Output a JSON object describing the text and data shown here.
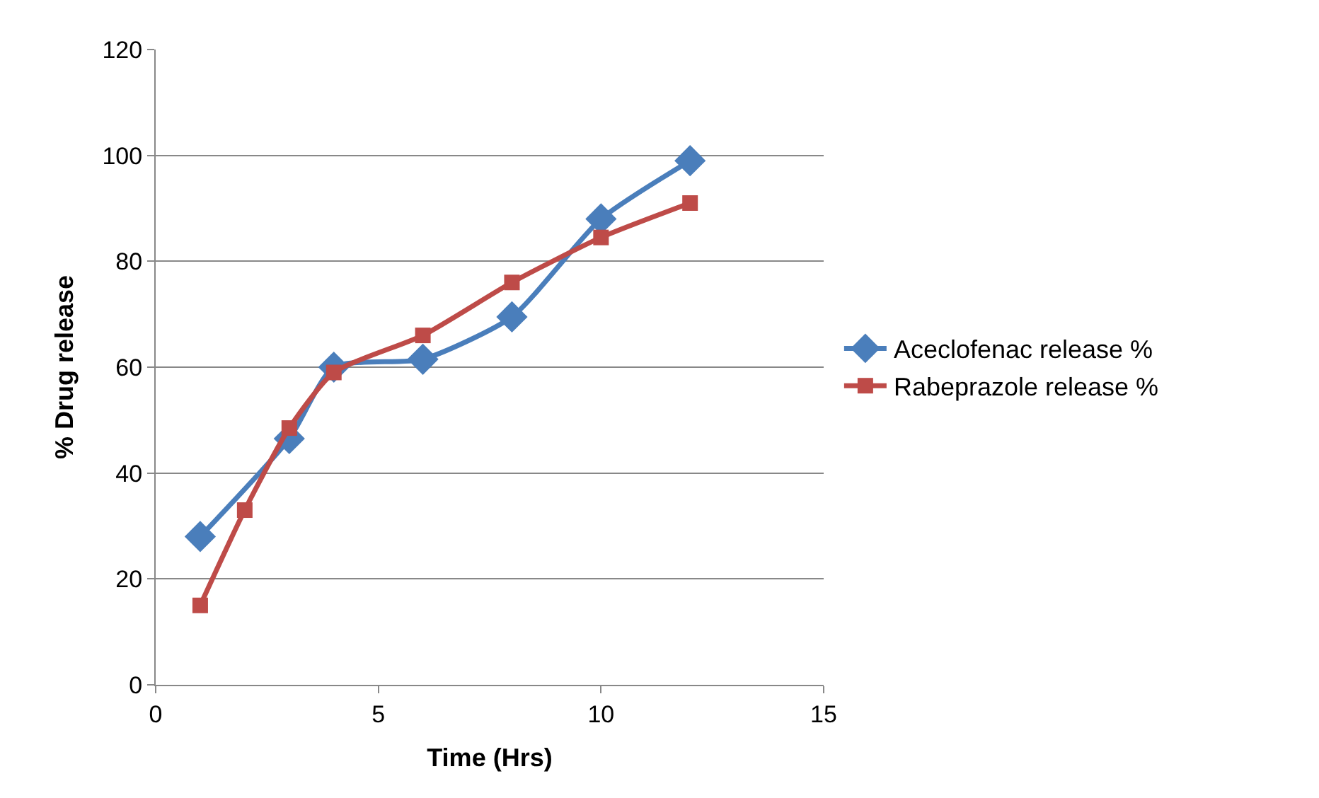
{
  "chart_data": {
    "type": "line",
    "xlabel": "Time (Hrs)",
    "ylabel": "% Drug release",
    "x": [
      1,
      2,
      3,
      4,
      6,
      8,
      10,
      12
    ],
    "series": [
      {
        "name": "Aceclofenac release %",
        "color": "#4a7ebb",
        "marker": "diamond",
        "values": [
          28,
          null,
          46.5,
          60,
          61.5,
          69.5,
          88,
          99
        ]
      },
      {
        "name": "Rabeprazole release %",
        "color": "#be4b48",
        "marker": "square",
        "values": [
          15,
          33,
          48.5,
          59,
          66,
          76,
          84.5,
          91
        ]
      }
    ],
    "xlim": [
      0,
      15
    ],
    "xticks": [
      0,
      5,
      10,
      15
    ],
    "ylim": [
      0,
      120
    ],
    "yticks": [
      0,
      20,
      40,
      60,
      80,
      100,
      120
    ],
    "grid": "y",
    "legend": "right",
    "line_style": "solid"
  }
}
